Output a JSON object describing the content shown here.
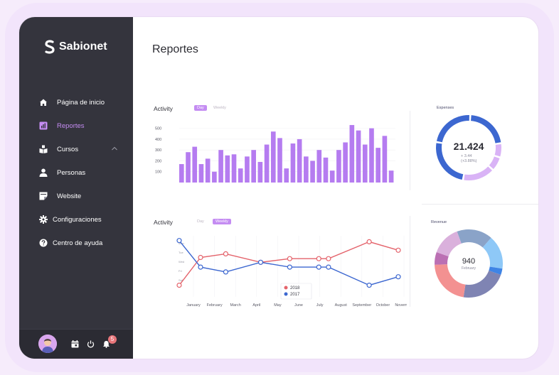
{
  "app": {
    "name": "Sabionet"
  },
  "nav": {
    "items": [
      {
        "label": "Página de inicio"
      },
      {
        "label": "Reportes"
      },
      {
        "label": "Cursos"
      },
      {
        "label": "Personas"
      },
      {
        "label": "Website"
      },
      {
        "label": "Configuraciones"
      },
      {
        "label": "Centro de ayuda"
      }
    ]
  },
  "footer": {
    "notification_count": "5"
  },
  "page": {
    "title": "Reportes"
  },
  "activity_bar": {
    "title": "Activity",
    "tabs": [
      "Day",
      "Weekly"
    ],
    "selected_tab": "Day"
  },
  "activity_line": {
    "title": "Activity",
    "tabs": [
      "Day",
      "Weekly"
    ],
    "selected_tab": "Weekly"
  },
  "expenses": {
    "title": "Expenses",
    "value": "21.424",
    "delta_abs": "+ 3.44",
    "delta_pct": "(+3.88%)"
  },
  "revenue": {
    "title": "Revenue",
    "value": "940",
    "sub": "February"
  },
  "colors": {
    "accent": "#c48cf2",
    "sidebar": "#34343d",
    "bar": "#b57cf0",
    "line_2018": "#e4636b",
    "line_2017": "#3c67d0"
  },
  "chart_data": [
    {
      "type": "bar",
      "y_ticks": [
        "500",
        "400",
        "300",
        "200",
        "100"
      ],
      "ylim": [
        0,
        550
      ],
      "values": [
        170,
        280,
        330,
        170,
        220,
        100,
        300,
        250,
        260,
        130,
        240,
        300,
        190,
        350,
        470,
        410,
        130,
        360,
        400,
        240,
        200,
        300,
        230,
        110,
        300,
        370,
        530,
        480,
        350,
        500,
        320,
        430,
        110
      ],
      "legend": false
    },
    {
      "type": "line",
      "categories": [
        "January",
        "February",
        "March",
        "April",
        "May",
        "June",
        "July",
        "August",
        "September",
        "October",
        "November"
      ],
      "y_ticks": [
        "Mon",
        "Tue",
        "Wed",
        "Fri",
        "Sat"
      ],
      "x": [
        0,
        1.1,
        2.2,
        4.2,
        5.5,
        6.8,
        7.4,
        9.3,
        10.8
      ],
      "series": [
        {
          "name": "2018",
          "color": "#e4636b",
          "x": [
            0,
            1.1,
            2.4,
            4.2,
            5.7,
            7.2,
            7.7,
            9.8,
            11.3
          ],
          "values": [
            1.2,
            3.5,
            3.8,
            3.1,
            3.4,
            3.4,
            3.4,
            4.8,
            4.1
          ]
        },
        {
          "name": "2017",
          "color": "#3c67d0",
          "x": [
            0,
            1.1,
            2.4,
            4.2,
            5.7,
            7.2,
            7.7,
            9.8,
            11.3
          ],
          "values": [
            4.9,
            2.7,
            2.3,
            3.1,
            2.7,
            2.7,
            2.7,
            1.2,
            1.9
          ]
        }
      ],
      "legend": "bottom-center"
    },
    {
      "type": "pie",
      "title": "Expenses",
      "style": "ring-segments",
      "segments": [
        {
          "value": 22,
          "color": "#3c67d0"
        },
        {
          "value": 7,
          "color": "#d9b3f6"
        },
        {
          "value": 7,
          "color": "#d9b3f6"
        },
        {
          "value": 16,
          "color": "#d9b3f6"
        },
        {
          "value": 25,
          "color": "#3c67d0"
        },
        {
          "value": 23,
          "color": "#3c67d0"
        }
      ]
    },
    {
      "type": "pie",
      "title": "Revenue",
      "style": "donut",
      "segments": [
        {
          "value": 17,
          "color": "#8aa3c8"
        },
        {
          "value": 16,
          "color": "#8ec8f7"
        },
        {
          "value": 3,
          "color": "#3f84e5"
        },
        {
          "value": 22,
          "color": "#7f84b3"
        },
        {
          "value": 22,
          "color": "#f39191"
        },
        {
          "value": 6,
          "color": "#bb6fb3"
        },
        {
          "value": 14,
          "color": "#dab0dc"
        }
      ]
    }
  ]
}
